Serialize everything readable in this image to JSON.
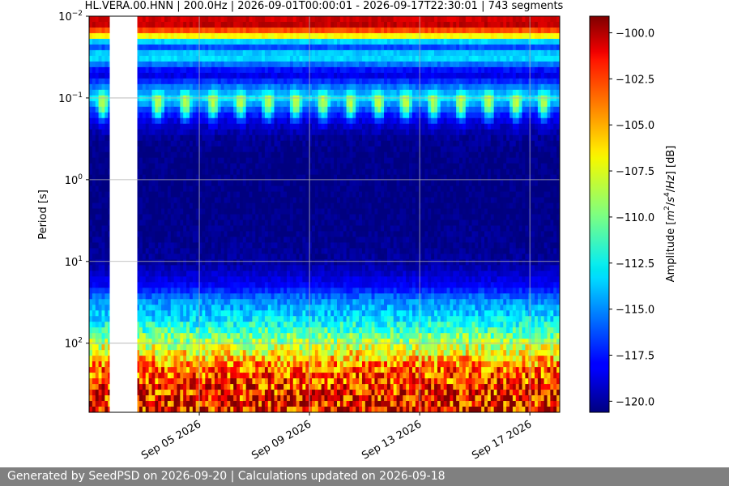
{
  "chart_data": {
    "type": "heatmap",
    "title": "HL.VERA.00.HNN | 200.0Hz | 2026-09-01T00:00:01 - 2026-09-17T22:30:01 | 743 segments",
    "xlabel": "",
    "ylabel": "Period [s]",
    "x_ticks": [
      "Sep 05 2026",
      "Sep 09 2026",
      "Sep 13 2026",
      "Sep 17 2026"
    ],
    "x_tick_dates": [
      "2026-09-05",
      "2026-09-09",
      "2026-09-13",
      "2026-09-17"
    ],
    "xlim": [
      "2026-09-01T00:00:01",
      "2026-09-18T02:00:00"
    ],
    "y_scale": "log",
    "y_inverted": true,
    "y_ticks": [
      0.01,
      0.1,
      1,
      10,
      100
    ],
    "y_tick_labels": [
      {
        "base": "10",
        "exp": "−2"
      },
      {
        "base": "10",
        "exp": "−1"
      },
      {
        "base": "10",
        "exp": "0"
      },
      {
        "base": "10",
        "exp": "1"
      },
      {
        "base": "10",
        "exp": "2"
      }
    ],
    "ylim": [
      0.01,
      700
    ],
    "gap": {
      "start": "2026-09-01T18:00:00",
      "end": "2026-09-02T18:00:00"
    },
    "grid": true,
    "colorbar": {
      "label_parts": [
        "Amplitude [",
        "m",
        "2",
        "/",
        "s",
        "4",
        "/",
        "Hz",
        "] [dB]"
      ],
      "cmap": "jet",
      "range": [
        -120.6,
        -99.1
      ],
      "ticks": [
        -100.0,
        -102.5,
        -105.0,
        -107.5,
        -110.0,
        -112.5,
        -115.0,
        -117.5,
        -120.0
      ],
      "tick_labels": [
        "−100.0",
        "−102.5",
        "−105.0",
        "−107.5",
        "−110.0",
        "−112.5",
        "−115.0",
        "−117.5",
        "−120.0"
      ]
    },
    "profile_db": {
      "period_s": [
        0.01,
        0.013,
        0.017,
        0.02,
        0.025,
        0.03,
        0.05,
        0.07,
        0.1,
        0.15,
        0.2,
        0.3,
        0.5,
        1,
        3,
        10,
        20,
        30,
        50,
        100,
        200,
        700
      ],
      "level_db": [
        -101,
        -100.5,
        -106,
        -113,
        -117,
        -112,
        -119,
        -116,
        -113,
        -117,
        -119,
        -120,
        -120.5,
        -120.5,
        -120.5,
        -120,
        -118,
        -115,
        -113,
        -109,
        -104,
        -101
      ]
    }
  },
  "footer": {
    "text": "Generated by SeedPSD on 2026-09-20 | Calculations updated on 2026-09-18"
  }
}
